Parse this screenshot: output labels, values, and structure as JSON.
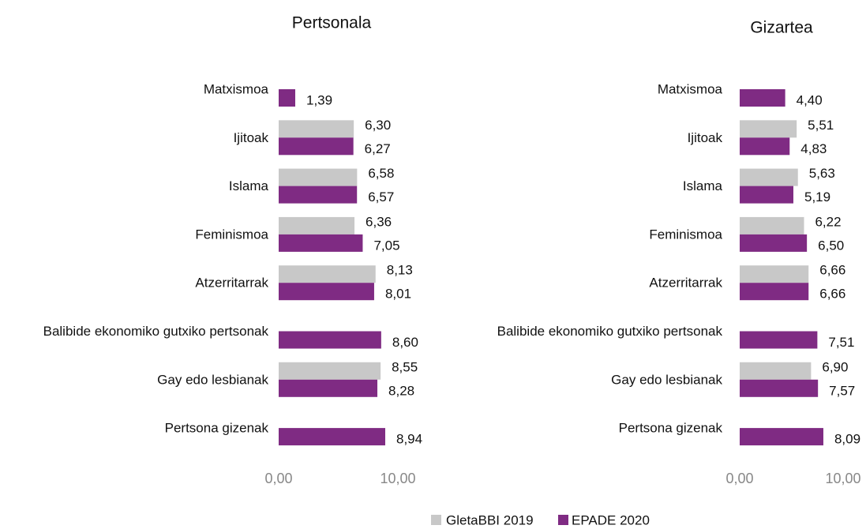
{
  "chart_data": [
    {
      "type": "bar",
      "orientation": "horizontal",
      "title": "Pertsonala",
      "categories": [
        "Matxismoa",
        "Ijitoak",
        "Islama",
        "Feminismoa",
        "Atzerritarrak",
        "Balibide ekonomiko gutxiko pertsonak",
        "Gay edo lesbianak",
        "Pertsona gizenak"
      ],
      "series": [
        {
          "name": "GletaBBI 2019",
          "color": "#c8c8c8",
          "values": [
            null,
            6.3,
            6.58,
            6.36,
            8.13,
            null,
            8.55,
            null
          ],
          "value_labels": [
            null,
            "6,30",
            "6,58",
            "6,36",
            "8,13",
            null,
            "8,55",
            null
          ]
        },
        {
          "name": "EPADE 2020",
          "color": "#7f2b83",
          "values": [
            1.39,
            6.27,
            6.57,
            7.05,
            8.01,
            8.6,
            8.28,
            8.94
          ],
          "value_labels": [
            "1,39",
            "6,27",
            "6,57",
            "7,05",
            "8,01",
            "8,60",
            "8,28",
            "8,94"
          ]
        }
      ],
      "xlim": [
        0,
        10
      ],
      "xticks": [
        {
          "value": 0,
          "label": "0,00"
        },
        {
          "value": 10,
          "label": "10,00"
        }
      ]
    },
    {
      "type": "bar",
      "orientation": "horizontal",
      "title": "Gizartea",
      "categories": [
        "Matxismoa",
        "Ijitoak",
        "Islama",
        "Feminismoa",
        "Atzerritarrak",
        "Balibide ekonomiko gutxiko pertsonak",
        "Gay edo lesbianak",
        "Pertsona gizenak"
      ],
      "series": [
        {
          "name": "GletaBBI 2019",
          "color": "#c8c8c8",
          "values": [
            null,
            5.51,
            5.63,
            6.22,
            6.66,
            null,
            6.9,
            null
          ],
          "value_labels": [
            null,
            "5,51",
            "5,63",
            "6,22",
            "6,66",
            null,
            "6,90",
            null
          ]
        },
        {
          "name": "EPADE 2020",
          "color": "#7f2b83",
          "values": [
            4.4,
            4.83,
            5.19,
            6.5,
            6.66,
            7.51,
            7.57,
            8.09
          ],
          "value_labels": [
            "4,40",
            "4,83",
            "5,19",
            "6,50",
            "6,66",
            "7,51",
            "7,57",
            "8,09"
          ]
        }
      ],
      "xlim": [
        0,
        10
      ],
      "xticks": [
        {
          "value": 0,
          "label": "0,00"
        },
        {
          "value": 10,
          "label": "10,00"
        }
      ]
    }
  ]
}
